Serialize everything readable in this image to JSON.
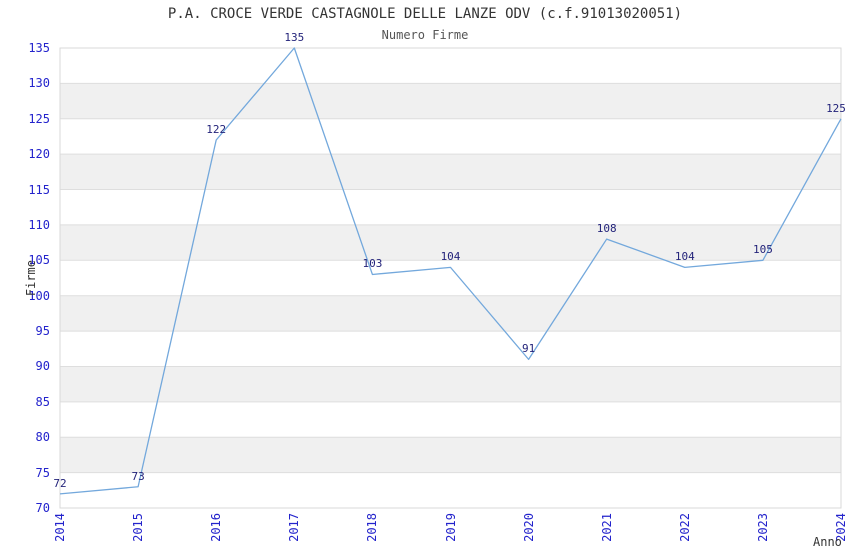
{
  "page": {
    "background": "#ffffff"
  },
  "colors": {
    "line": "#73a8dc",
    "tick_label": "#2323cc",
    "point_label": "#23237a",
    "band": "#f0f0f0",
    "gridline": "#dedede",
    "plot_border": "#d9d9d9",
    "title": "#333333",
    "subtitle": "#555555",
    "axis_title": "#333333"
  },
  "chart_data": {
    "type": "line",
    "title": "P.A. CROCE VERDE CASTAGNOLE DELLE LANZE ODV (c.f.91013020051)",
    "subtitle": "Numero Firme",
    "xlabel": "Anno",
    "ylabel": "Firme",
    "x": [
      2014,
      2015,
      2016,
      2017,
      2018,
      2019,
      2020,
      2021,
      2022,
      2023,
      2024
    ],
    "values": [
      72,
      73,
      122,
      135,
      103,
      104,
      91,
      108,
      104,
      105,
      125
    ],
    "point_labels": [
      "72",
      "73",
      "122",
      "135",
      "103",
      "104",
      "91",
      "108",
      "104",
      "105",
      "125"
    ],
    "xticks": [
      "2014",
      "2015",
      "2016",
      "2017",
      "2018",
      "2019",
      "2020",
      "2021",
      "2022",
      "2023",
      "2024"
    ],
    "yticks": [
      70,
      75,
      80,
      85,
      90,
      95,
      100,
      105,
      110,
      115,
      120,
      125,
      130,
      135
    ],
    "ylim": [
      70,
      135
    ],
    "ytick_step": 5,
    "grid": "horizontal",
    "background_bands": "alternating-gray-every-5",
    "legend": "none",
    "markers": "none"
  }
}
